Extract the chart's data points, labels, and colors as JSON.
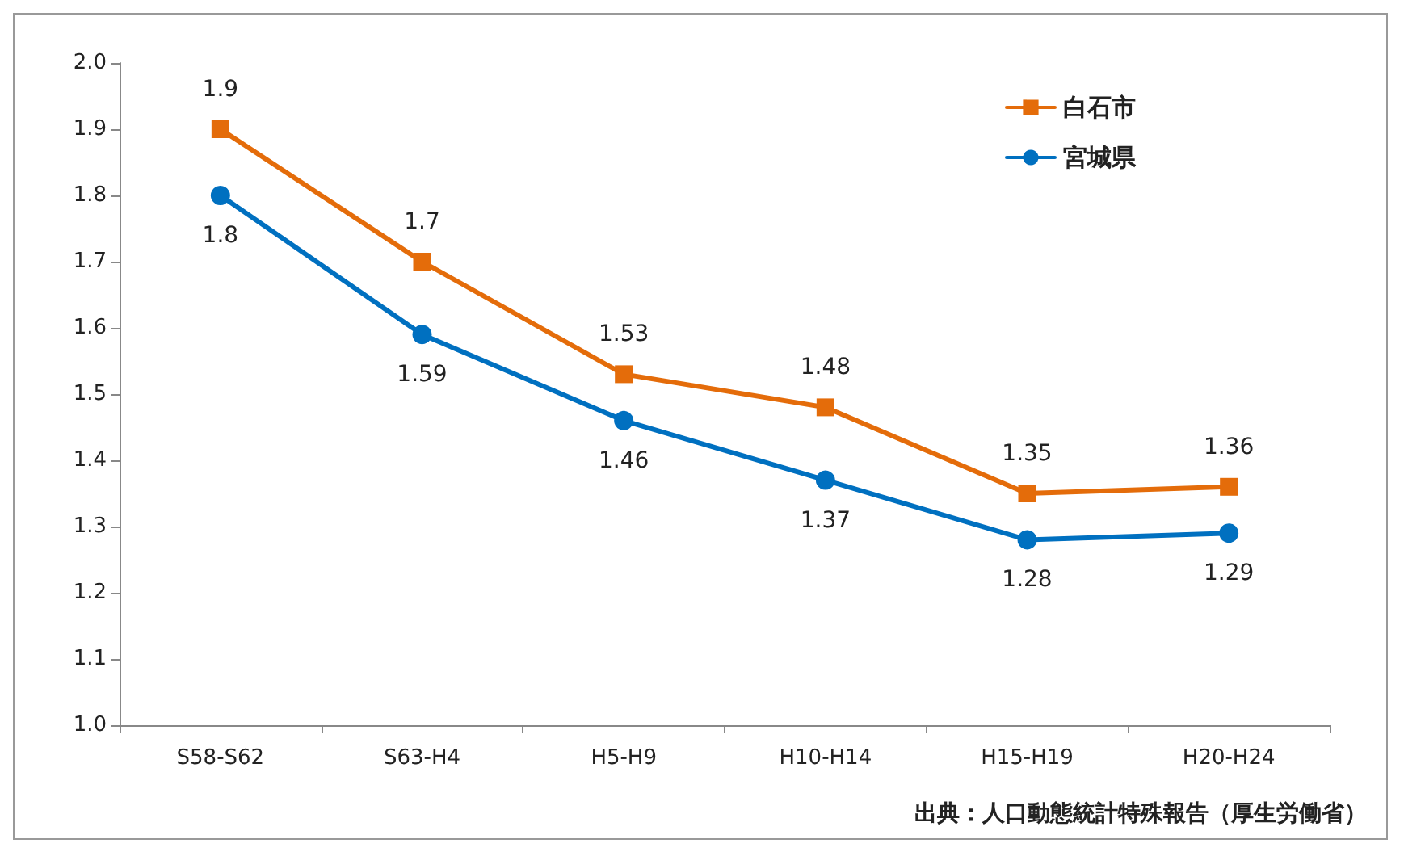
{
  "chart_data": {
    "type": "line",
    "categories": [
      "S58-S62",
      "S63-H4",
      "H5-H9",
      "H10-H14",
      "H15-H19",
      "H20-H24"
    ],
    "series": [
      {
        "name": "白石市",
        "color": "#e46c0a",
        "marker": "square",
        "values": [
          1.9,
          1.7,
          1.53,
          1.48,
          1.35,
          1.36
        ]
      },
      {
        "name": "宮城県",
        "color": "#0070c0",
        "marker": "circle",
        "values": [
          1.8,
          1.59,
          1.46,
          1.37,
          1.28,
          1.29
        ]
      }
    ],
    "ylim": [
      1,
      2
    ],
    "yticks": [
      {
        "value": 1,
        "label": "1.0"
      },
      1.1,
      1.2,
      1.3,
      1.4,
      1.5,
      1.6,
      1.7,
      1.8,
      1.9,
      {
        "value": 2,
        "label": "2.0"
      }
    ],
    "grid": false,
    "legend": "top right",
    "data_labels": true,
    "line_style": "solid",
    "annotations": [
      "出典：人口動態統計特殊報告（厚生労働省）"
    ]
  }
}
